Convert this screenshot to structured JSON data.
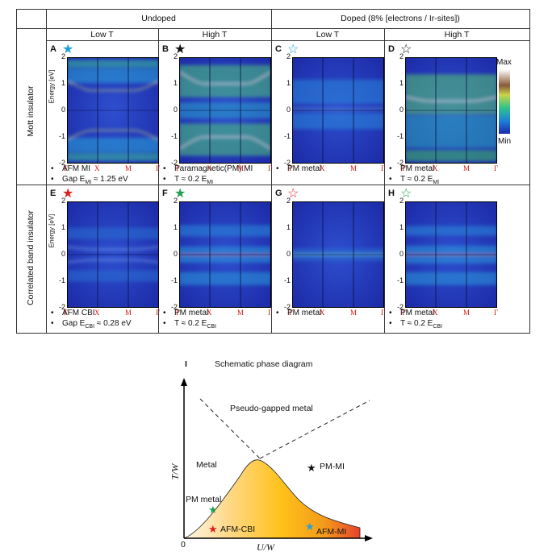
{
  "header": {
    "undoped": "Undoped",
    "doped": "Doped (8% [electrons / Ir-sites])",
    "cols": [
      "Low T",
      "High T",
      "Low T",
      "High T"
    ]
  },
  "rows": [
    "Mott insulator",
    "Correlated band insulator"
  ],
  "panels": [
    {
      "letter": "A",
      "star": "★",
      "star_color": "#1ea0d8",
      "lines": [
        "AFM MI",
        "Gap E",
        "MI",
        " ≈ 1.25 eV"
      ]
    },
    {
      "letter": "B",
      "star": "★",
      "star_color": "#111111",
      "lines": [
        "Paramagnetic(PM) MI",
        "T ≈ 0.2 E",
        "MI",
        ""
      ]
    },
    {
      "letter": "C",
      "star": "☆",
      "star_color": "#1ea0d8",
      "lines": [
        "PM metal",
        "",
        "",
        ""
      ]
    },
    {
      "letter": "D",
      "star": "☆",
      "star_color": "#111111",
      "lines": [
        "PM metal",
        "T ≈ 0.2 E",
        "MI",
        ""
      ]
    },
    {
      "letter": "E",
      "star": "★",
      "star_color": "#e02020",
      "lines": [
        "AFM CBI",
        "Gap E",
        "CBI",
        " ≈ 0.28 eV"
      ]
    },
    {
      "letter": "F",
      "star": "★",
      "star_color": "#20a050",
      "lines": [
        "PM metal",
        "T ≈ 0.2 E",
        "CBI",
        ""
      ]
    },
    {
      "letter": "G",
      "star": "☆",
      "star_color": "#e02020",
      "lines": [
        "PM metal",
        "",
        "",
        ""
      ]
    },
    {
      "letter": "H",
      "star": "☆",
      "star_color": "#20a050",
      "lines": [
        "PM metal",
        "T ≈ 0.2 E",
        "CBI",
        ""
      ]
    }
  ],
  "axis": {
    "ylabel": "Energy [eV]",
    "yticks": [
      "2",
      "1",
      "0",
      "-1",
      "-2"
    ],
    "xticks": [
      "Γ",
      "X",
      "M",
      "Γ"
    ]
  },
  "colorbar": {
    "max": "Max",
    "min": "Min"
  },
  "phase": {
    "letter": "I",
    "title": "Schematic phase diagram",
    "ylabel": "T/W",
    "xlabel": "U/W",
    "origin": "0",
    "regions": {
      "pseudo": "Pseudo-gapped metal",
      "metal": "Metal",
      "pmmi": "PM-MI",
      "pmmetal": "PM metal",
      "afmcbi": "AFM-CBI",
      "afmmi": "AFM-MI"
    },
    "markers": [
      {
        "name": "pm-mi",
        "color": "#111111"
      },
      {
        "name": "pm-metal",
        "color": "#20a050"
      },
      {
        "name": "afm-cbi",
        "color": "#e02020"
      },
      {
        "name": "afm-mi",
        "color": "#1ea0d8"
      }
    ]
  }
}
